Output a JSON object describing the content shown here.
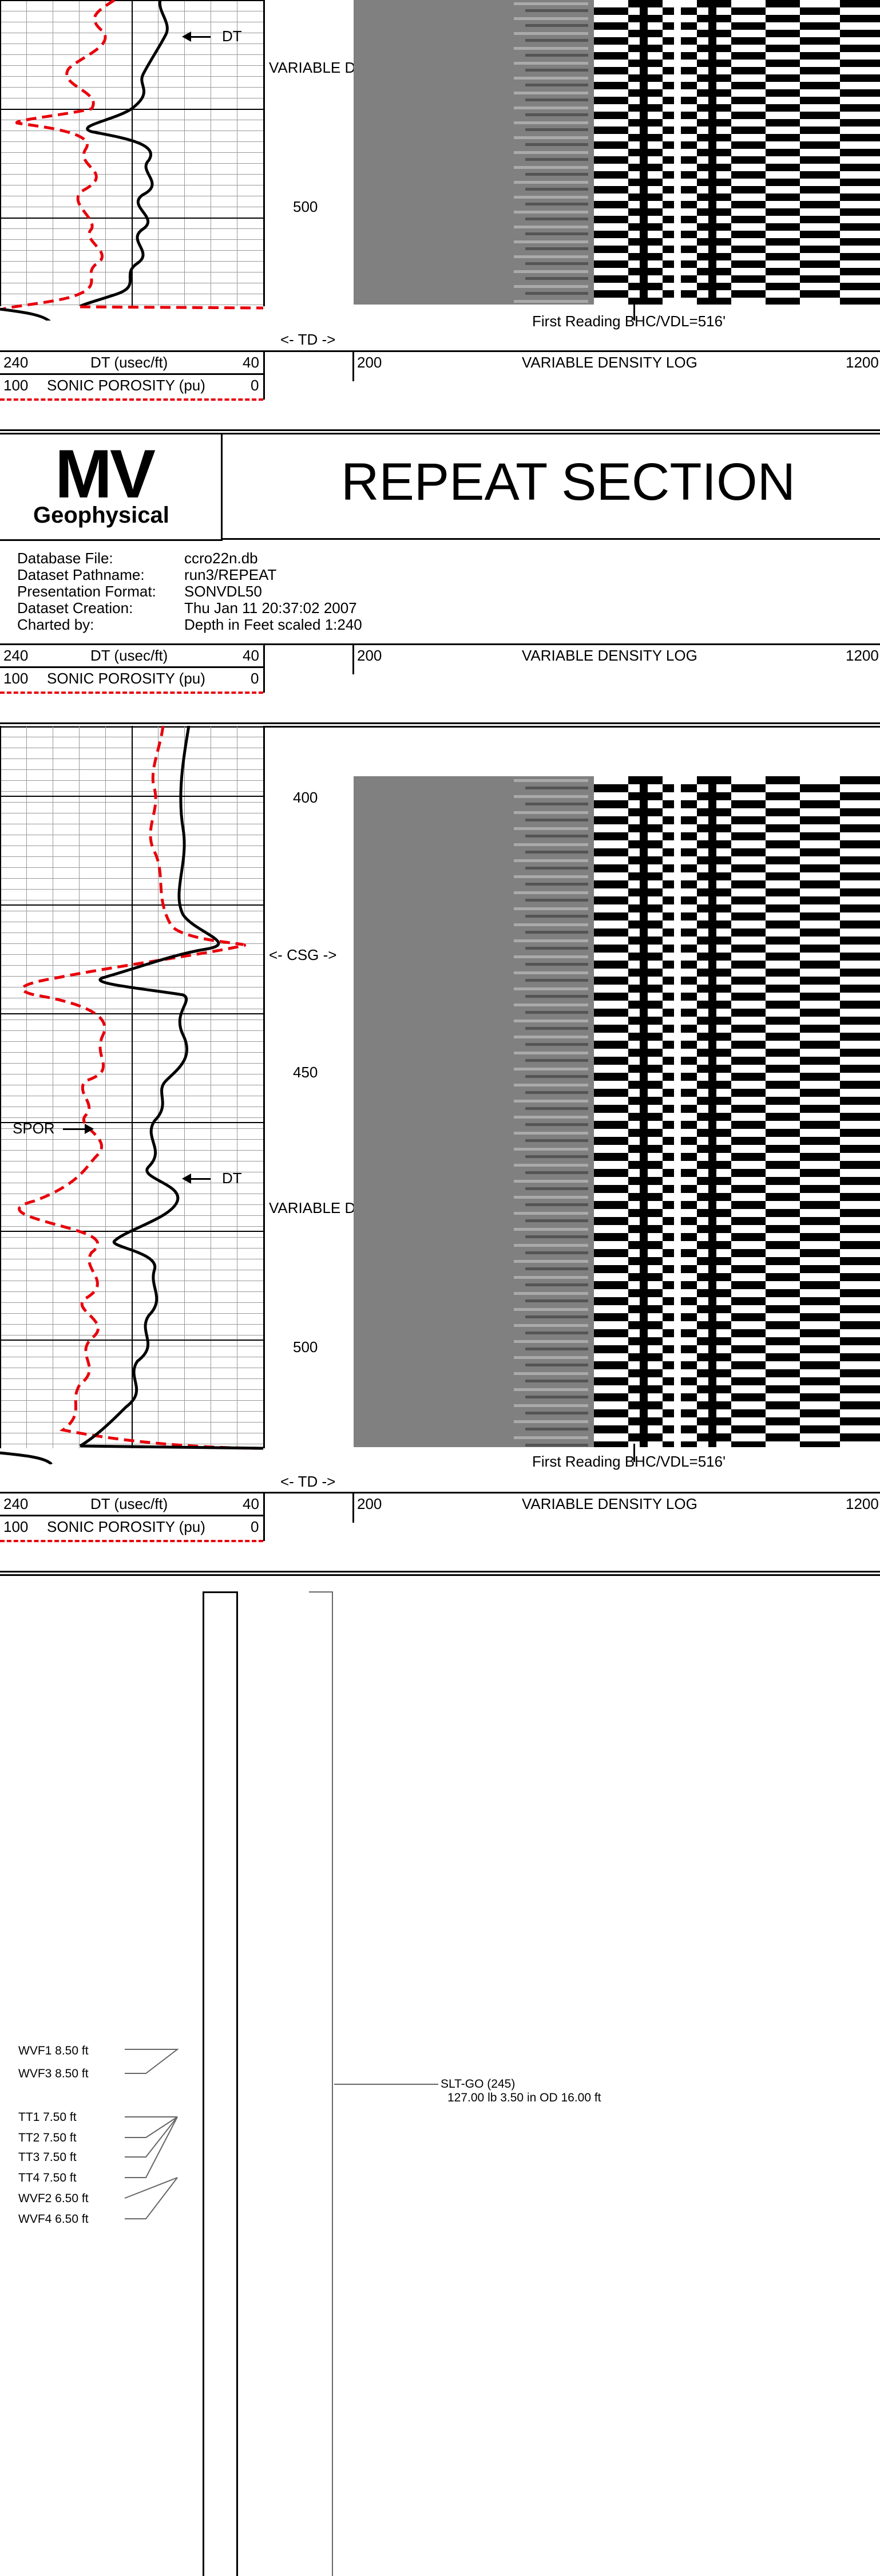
{
  "main_log": {
    "dt_curve_label": "DT",
    "vdl_label": "VARIABLE DENSITY LOG",
    "depth_500": "500",
    "first_reading": "First Reading BHC/VDL=516'",
    "td_marker": "<- TD ->"
  },
  "scale_footer": {
    "dt_left": "240",
    "dt_title": "DT (usec/ft)",
    "dt_right": "40",
    "por_left": "100",
    "por_title": "SONIC POROSITY (pu)",
    "por_right": "0",
    "vdl_left": "200",
    "vdl_title": "VARIABLE DENSITY LOG",
    "vdl_right": "1200"
  },
  "repeat_header": {
    "logo_mv": "MV",
    "logo_geo": "Geophysical",
    "title": "REPEAT SECTION",
    "info": [
      {
        "label": "Database File:",
        "value": "ccro22n.db"
      },
      {
        "label": "Dataset Pathname:",
        "value": "run3/REPEAT"
      },
      {
        "label": "Presentation Format:",
        "value": "SONVDL50"
      },
      {
        "label": "Dataset Creation:",
        "value": "Thu Jan 11 20:37:02 2007"
      },
      {
        "label": "Charted by:",
        "value": "Depth in Feet scaled 1:240"
      }
    ]
  },
  "repeat_log": {
    "depth_400": "400",
    "csg_marker": "<- CSG ->",
    "depth_450": "450",
    "spor_label": "SPOR",
    "dt_label": "DT",
    "vdl_label": "VARIABLE DENSITY LOG",
    "depth_500": "500",
    "first_reading": "First Reading BHC/VDL=516'",
    "td_marker": "<- TD ->"
  },
  "tool_diagram": {
    "sensors": [
      {
        "label": "WVF1  8.50 ft"
      },
      {
        "label": "WVF3  8.50 ft"
      },
      {
        "label": "TT1  7.50 ft"
      },
      {
        "label": "TT2  7.50 ft"
      },
      {
        "label": "TT3  7.50 ft"
      },
      {
        "label": "TT4  7.50 ft"
      },
      {
        "label": "WVF2  6.50 ft"
      },
      {
        "label": "WVF4  6.50 ft"
      }
    ],
    "tool_name": "SLT-GO  (245)",
    "tool_specs": "127.00 lb  3.50 in OD  16.00 ft"
  },
  "colors": {
    "dt_curve": "#000000",
    "porosity_curve": "#e8000b",
    "vdl_background": "#808080"
  }
}
